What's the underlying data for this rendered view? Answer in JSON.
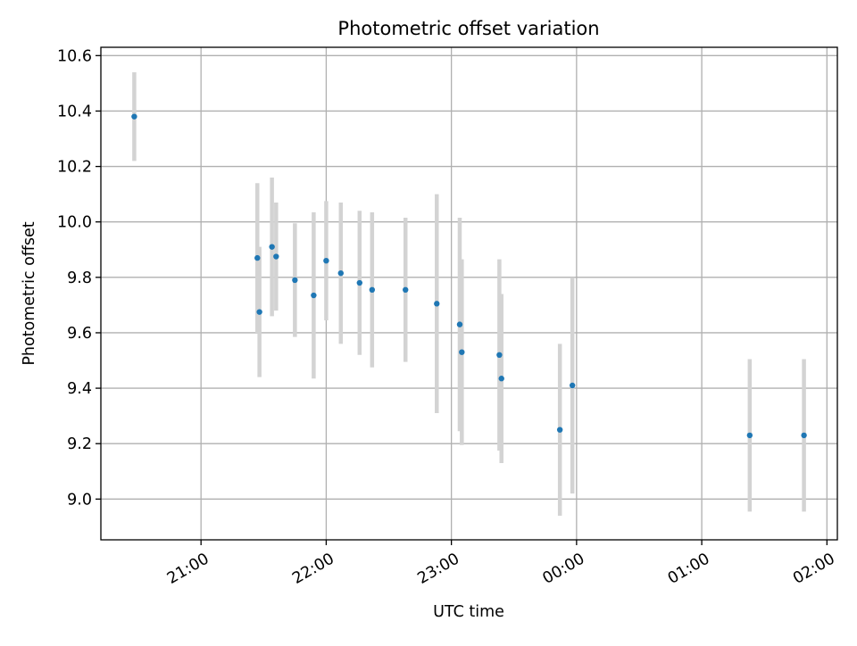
{
  "chart_data": {
    "type": "scatter",
    "title": "Photometric offset variation",
    "xlabel": "UTC time",
    "ylabel": "Photometric offset",
    "grid": true,
    "legend": "none",
    "x_axis_type": "time",
    "xlim": [
      "20:12",
      "02:05"
    ],
    "ylim": [
      8.853,
      10.63
    ],
    "x_ticks": [
      "21:00",
      "22:00",
      "23:00",
      "00:00",
      "01:00",
      "02:00"
    ],
    "y_ticks": [
      "9.0",
      "9.2",
      "9.4",
      "9.6",
      "9.8",
      "10.0",
      "10.2",
      "10.4",
      "10.6"
    ],
    "colors": {
      "point": "#1f77b4",
      "errorbar": "#d3d3d3",
      "grid": "#b0b0b0"
    },
    "series": [
      {
        "points": [
          {
            "x": "20:28",
            "y": 10.38,
            "err": 0.16
          },
          {
            "x": "21:27",
            "y": 9.87,
            "err": 0.27
          },
          {
            "x": "21:28",
            "y": 9.675,
            "err": 0.235
          },
          {
            "x": "21:34",
            "y": 9.91,
            "err": 0.25
          },
          {
            "x": "21:36",
            "y": 9.875,
            "err": 0.195
          },
          {
            "x": "21:45",
            "y": 9.79,
            "err": 0.205
          },
          {
            "x": "21:54",
            "y": 9.735,
            "err": 0.3
          },
          {
            "x": "22:00",
            "y": 9.86,
            "err": 0.215
          },
          {
            "x": "22:07",
            "y": 9.815,
            "err": 0.255
          },
          {
            "x": "22:16",
            "y": 9.78,
            "err": 0.26
          },
          {
            "x": "22:22",
            "y": 9.755,
            "err": 0.28
          },
          {
            "x": "22:38",
            "y": 9.755,
            "err": 0.26
          },
          {
            "x": "22:53",
            "y": 9.705,
            "err": 0.395
          },
          {
            "x": "23:04",
            "y": 9.63,
            "err": 0.385
          },
          {
            "x": "23:05",
            "y": 9.53,
            "err": 0.335
          },
          {
            "x": "23:23",
            "y": 9.52,
            "err": 0.345
          },
          {
            "x": "23:24",
            "y": 9.435,
            "err": 0.305
          },
          {
            "x": "23:52",
            "y": 9.25,
            "err": 0.31
          },
          {
            "x": "23:58",
            "y": 9.41,
            "err": 0.39
          },
          {
            "x": "01:23",
            "y": 9.23,
            "err": 0.275
          },
          {
            "x": "01:49",
            "y": 9.23,
            "err": 0.275
          }
        ]
      }
    ]
  }
}
